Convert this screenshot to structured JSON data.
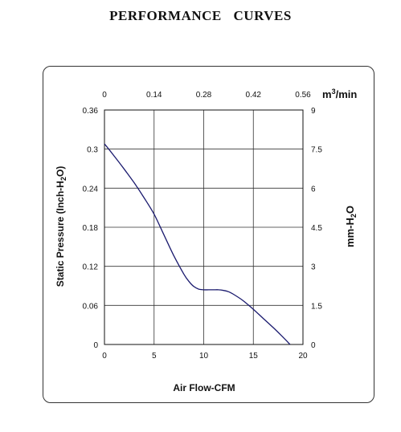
{
  "page": {
    "title": "PERFORMANCE    CURVES"
  },
  "chart_data": {
    "type": "line",
    "title": "PERFORMANCE    CURVES",
    "xlabel": "Air Flow-CFM",
    "ylabel": {
      "pre": "Static Pressure (Inch-H",
      "sub": "2",
      "post": "O)"
    },
    "x2label": {
      "pre": "m",
      "sup": "3",
      "post": "/min"
    },
    "y2label": {
      "pre": "mm-H",
      "sub": "2",
      "post": "O"
    },
    "xlim": [
      0,
      20
    ],
    "ylim": [
      0,
      0.36
    ],
    "x2lim": [
      0,
      0.56
    ],
    "y2lim": [
      0,
      9
    ],
    "x_ticks": [
      "0",
      "5",
      "10",
      "15",
      "20"
    ],
    "y_ticks": [
      "0",
      "0.06",
      "0.12",
      "0.18",
      "0.24",
      "0.3",
      "0.36"
    ],
    "x2_ticks": [
      "0",
      "0.14",
      "0.28",
      "0.42",
      "0.56"
    ],
    "y2_ticks": [
      "0",
      "1.5",
      "3",
      "4.5",
      "6",
      "7.5",
      "9"
    ],
    "grid": true,
    "line_color": "#1a1a6e",
    "series": [
      {
        "x": [
          0,
          1,
          2,
          3,
          4,
          5,
          6,
          7,
          8,
          8.5,
          9,
          9.5,
          10,
          10.5,
          11,
          11.5,
          12,
          12.5,
          13,
          14,
          15,
          16,
          17,
          18,
          18.7
        ],
        "y": [
          0.308,
          0.289,
          0.269,
          0.248,
          0.225,
          0.2,
          0.168,
          0.136,
          0.108,
          0.097,
          0.089,
          0.085,
          0.084,
          0.084,
          0.084,
          0.084,
          0.083,
          0.081,
          0.077,
          0.067,
          0.054,
          0.04,
          0.026,
          0.011,
          0.0
        ]
      }
    ]
  }
}
